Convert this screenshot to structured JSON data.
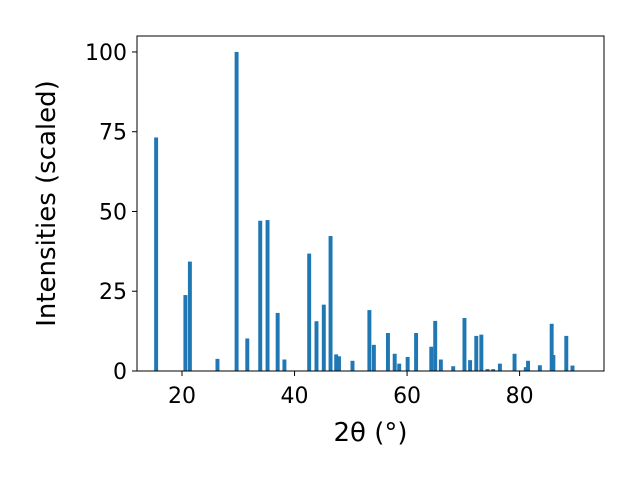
{
  "chart_data": {
    "type": "bar",
    "title": "",
    "xlabel": "2θ (°)",
    "ylabel": "Intensities (scaled)",
    "xlim": [
      12,
      95
    ],
    "ylim": [
      0,
      105
    ],
    "xticks": [
      20,
      40,
      60,
      80
    ],
    "yticks": [
      0,
      25,
      50,
      75,
      100
    ],
    "grid": false,
    "legend": "none",
    "bar_width": 0.7,
    "color": "#1f77b4",
    "x": [
      15.4,
      20.6,
      21.4,
      26.3,
      29.7,
      31.6,
      33.9,
      35.2,
      37.0,
      38.2,
      42.6,
      43.9,
      45.2,
      46.4,
      47.4,
      47.9,
      50.3,
      53.3,
      54.1,
      56.6,
      57.8,
      58.6,
      60.1,
      61.6,
      64.3,
      65.0,
      66.0,
      68.2,
      70.2,
      71.2,
      72.3,
      73.2,
      74.3,
      75.3,
      76.5,
      79.1,
      81.1,
      81.5,
      83.6,
      85.7,
      86.0,
      88.3,
      89.4
    ],
    "values": [
      73.2,
      23.8,
      34.3,
      3.8,
      100.0,
      10.2,
      47.1,
      47.3,
      18.2,
      3.6,
      36.8,
      15.6,
      20.8,
      42.3,
      5.2,
      4.6,
      3.2,
      19.1,
      8.2,
      11.9,
      5.4,
      2.3,
      4.4,
      11.9,
      7.6,
      15.7,
      3.6,
      1.5,
      16.6,
      3.4,
      11.0,
      11.4,
      0.6,
      0.6,
      2.3,
      5.4,
      1.2,
      3.2,
      1.8,
      14.8,
      5.0,
      11.0,
      1.7
    ]
  }
}
